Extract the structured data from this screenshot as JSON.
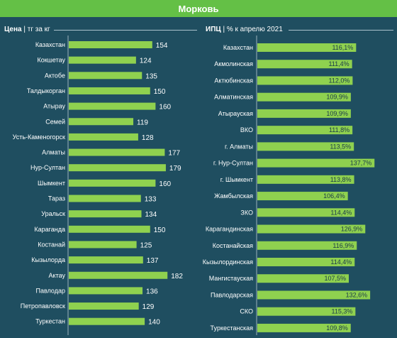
{
  "header": {
    "title": "Морковь"
  },
  "left_title": {
    "bold": "Цена",
    "rest": "| тг за кг"
  },
  "right_title": {
    "bold": "ИПЦ",
    "rest": "| % к апрелю 2021"
  },
  "colors": {
    "bar": "#8fd14f",
    "background": "#1f4e60",
    "header": "#64c046",
    "divider": "#9bb3bd"
  },
  "chart_data": [
    {
      "type": "bar",
      "orientation": "horizontal",
      "title": "Цена | тг за кг",
      "categories": [
        "Казахстан",
        "Кокшетау",
        "Актобе",
        "Талдыкорган",
        "Атырау",
        "Семей",
        "Усть-Каменогорск",
        "Алматы",
        "Нур-Султан",
        "Шымкент",
        "Тараз",
        "Уральск",
        "Караганда",
        "Костанай",
        "Кызылорда",
        "Актау",
        "Павлодар",
        "Петропавловск",
        "Туркестан"
      ],
      "values": [
        154,
        124,
        135,
        150,
        160,
        119,
        128,
        177,
        179,
        160,
        133,
        134,
        150,
        125,
        137,
        182,
        136,
        129,
        140
      ],
      "labels": [
        "154",
        "124",
        "135",
        "150",
        "160",
        "119",
        "128",
        "177",
        "179",
        "160",
        "133",
        "134",
        "150",
        "125",
        "137",
        "182",
        "136",
        "129",
        "140"
      ]
    },
    {
      "type": "bar",
      "orientation": "horizontal",
      "title": "ИПЦ | % к апрелю 2021",
      "categories": [
        "Казахстан",
        "Акмолинская",
        "Актюбинская",
        "Алматинская",
        "Атырауская",
        "ВКО",
        "г. Алматы",
        "г. Нур-Султан",
        "г. Шымкент",
        "Жамбылская",
        "ЗКО",
        "Карагандинская",
        "Костанайская",
        "Кызылординская",
        "Мангистауская",
        "Павлодарская",
        "СКО",
        "Туркестанская"
      ],
      "values": [
        116.1,
        111.4,
        112.0,
        109.9,
        109.9,
        111.8,
        113.5,
        137.7,
        113.8,
        106.4,
        114.4,
        126.9,
        116.9,
        114.4,
        107.5,
        132.6,
        115.3,
        109.8
      ],
      "labels": [
        "116,1%",
        "111,4%",
        "112,0%",
        "109,9%",
        "109,9%",
        "111,8%",
        "113,5%",
        "137,7%",
        "113,8%",
        "106,4%",
        "114,4%",
        "126,9%",
        "116,9%",
        "114,4%",
        "107,5%",
        "132,6%",
        "115,3%",
        "109,8%"
      ]
    }
  ]
}
